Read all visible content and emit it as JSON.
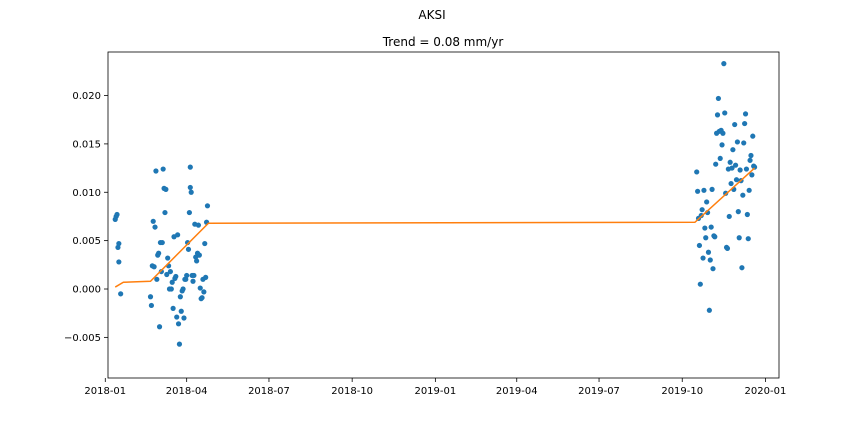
{
  "chart_data": {
    "type": "scatter",
    "suptitle": "AKSI",
    "title": "Trend = 0.08 mm/yr",
    "xlabel": "",
    "ylabel": "",
    "x_axis_type": "date",
    "xlim": [
      "2018-01-04",
      "2020-01-16"
    ],
    "ylim": [
      -0.0092,
      0.0245
    ],
    "grid": false,
    "legend": "none",
    "x_ticks": [
      "2018-01",
      "2018-04",
      "2018-07",
      "2018-10",
      "2019-01",
      "2019-04",
      "2019-07",
      "2019-10",
      "2020-01"
    ],
    "y_ticks": [
      -0.005,
      0.0,
      0.005,
      0.01,
      0.015,
      0.02
    ],
    "y_tick_labels": [
      "−0.005",
      "0.000",
      "0.005",
      "0.010",
      "0.015",
      "0.020"
    ],
    "colors": {
      "points": "#1f77b4",
      "trend": "#ff7f0e",
      "axes": "#000000"
    },
    "series": [
      {
        "kind": "scatter",
        "points": [
          [
            "2018-01-12",
            0.0072
          ],
          [
            "2018-01-13",
            0.0075
          ],
          [
            "2018-01-14",
            0.0077
          ],
          [
            "2018-01-15",
            0.0043
          ],
          [
            "2018-01-16",
            0.0047
          ],
          [
            "2018-01-16",
            0.0028
          ],
          [
            "2018-01-18",
            -0.0005
          ],
          [
            "2018-02-20",
            -0.0008
          ],
          [
            "2018-02-21",
            -0.0017
          ],
          [
            "2018-02-22",
            0.0024
          ],
          [
            "2018-02-23",
            0.007
          ],
          [
            "2018-02-24",
            0.0023
          ],
          [
            "2018-02-25",
            0.0064
          ],
          [
            "2018-02-26",
            0.0122
          ],
          [
            "2018-02-27",
            0.001
          ],
          [
            "2018-02-28",
            0.0035
          ],
          [
            "2018-03-01",
            0.0037
          ],
          [
            "2018-03-02",
            -0.0039
          ],
          [
            "2018-03-03",
            0.0048
          ],
          [
            "2018-03-04",
            0.0018
          ],
          [
            "2018-03-05",
            0.0048
          ],
          [
            "2018-03-06",
            0.0124
          ],
          [
            "2018-03-07",
            0.0104
          ],
          [
            "2018-03-08",
            0.0079
          ],
          [
            "2018-03-09",
            0.0103
          ],
          [
            "2018-03-10",
            0.0015
          ],
          [
            "2018-03-11",
            0.0032
          ],
          [
            "2018-03-12",
            0.0024
          ],
          [
            "2018-03-13",
            -0.0
          ],
          [
            "2018-03-14",
            0.0018
          ],
          [
            "2018-03-15",
            -0.0
          ],
          [
            "2018-03-16",
            0.0007
          ],
          [
            "2018-03-17",
            -0.002
          ],
          [
            "2018-03-18",
            0.0054
          ],
          [
            "2018-03-19",
            0.0011
          ],
          [
            "2018-03-20",
            0.0013
          ],
          [
            "2018-03-21",
            -0.0029
          ],
          [
            "2018-03-22",
            0.0056
          ],
          [
            "2018-03-23",
            -0.0036
          ],
          [
            "2018-03-24",
            -0.0057
          ],
          [
            "2018-03-25",
            -0.0008
          ],
          [
            "2018-03-26",
            -0.0023
          ],
          [
            "2018-03-27",
            -0.0002
          ],
          [
            "2018-03-28",
            -0.0
          ],
          [
            "2018-03-29",
            -0.003
          ],
          [
            "2018-03-30",
            0.001
          ],
          [
            "2018-03-31",
            0.001
          ],
          [
            "2018-04-01",
            0.0014
          ],
          [
            "2018-04-02",
            0.0048
          ],
          [
            "2018-04-03",
            0.0041
          ],
          [
            "2018-04-04",
            0.0079
          ],
          [
            "2018-04-05",
            0.0126
          ],
          [
            "2018-04-05",
            0.0105
          ],
          [
            "2018-04-06",
            0.01
          ],
          [
            "2018-04-07",
            0.0014
          ],
          [
            "2018-04-08",
            0.0008
          ],
          [
            "2018-04-09",
            0.0014
          ],
          [
            "2018-04-10",
            0.0067
          ],
          [
            "2018-04-11",
            0.0033
          ],
          [
            "2018-04-12",
            0.0029
          ],
          [
            "2018-04-13",
            0.0037
          ],
          [
            "2018-04-14",
            0.0066
          ],
          [
            "2018-04-15",
            0.0035
          ],
          [
            "2018-04-16",
            0.0001
          ],
          [
            "2018-04-17",
            -0.001
          ],
          [
            "2018-04-18",
            -0.0009
          ],
          [
            "2018-04-19",
            0.001
          ],
          [
            "2018-04-20",
            -0.0003
          ],
          [
            "2018-04-21",
            0.0047
          ],
          [
            "2018-04-22",
            0.0012
          ],
          [
            "2018-04-23",
            0.0069
          ],
          [
            "2018-04-24",
            0.0086
          ],
          [
            "2019-10-17",
            0.0121
          ],
          [
            "2019-10-18",
            0.0101
          ],
          [
            "2019-10-19",
            0.0073
          ],
          [
            "2019-10-20",
            0.0045
          ],
          [
            "2019-10-21",
            0.0005
          ],
          [
            "2019-10-22",
            0.0076
          ],
          [
            "2019-10-23",
            0.0082
          ],
          [
            "2019-10-24",
            0.0032
          ],
          [
            "2019-10-25",
            0.0102
          ],
          [
            "2019-10-26",
            0.0063
          ],
          [
            "2019-10-27",
            0.0053
          ],
          [
            "2019-10-28",
            0.009
          ],
          [
            "2019-10-29",
            0.0079
          ],
          [
            "2019-10-30",
            0.0038
          ],
          [
            "2019-10-31",
            -0.0022
          ],
          [
            "2019-11-01",
            0.003
          ],
          [
            "2019-11-02",
            0.0064
          ],
          [
            "2019-11-03",
            0.0103
          ],
          [
            "2019-11-04",
            0.0021
          ],
          [
            "2019-11-05",
            0.0055
          ],
          [
            "2019-11-06",
            0.0054
          ],
          [
            "2019-11-07",
            0.0129
          ],
          [
            "2019-11-08",
            0.0161
          ],
          [
            "2019-11-09",
            0.018
          ],
          [
            "2019-11-10",
            0.0197
          ],
          [
            "2019-11-11",
            0.0163
          ],
          [
            "2019-11-12",
            0.0135
          ],
          [
            "2019-11-13",
            0.0164
          ],
          [
            "2019-11-14",
            0.0149
          ],
          [
            "2019-11-15",
            0.0161
          ],
          [
            "2019-11-16",
            0.0233
          ],
          [
            "2019-11-17",
            0.0182
          ],
          [
            "2019-11-18",
            0.0099
          ],
          [
            "2019-11-19",
            0.0043
          ],
          [
            "2019-11-20",
            0.0042
          ],
          [
            "2019-11-21",
            0.0124
          ],
          [
            "2019-11-22",
            0.0075
          ],
          [
            "2019-11-23",
            0.0131
          ],
          [
            "2019-11-24",
            0.0109
          ],
          [
            "2019-11-25",
            0.0125
          ],
          [
            "2019-11-26",
            0.0144
          ],
          [
            "2019-11-27",
            0.0103
          ],
          [
            "2019-11-28",
            0.017
          ],
          [
            "2019-11-29",
            0.0128
          ],
          [
            "2019-11-30",
            0.0113
          ],
          [
            "2019-12-01",
            0.0152
          ],
          [
            "2019-12-02",
            0.008
          ],
          [
            "2019-12-03",
            0.0053
          ],
          [
            "2019-12-04",
            0.0123
          ],
          [
            "2019-12-05",
            0.0112
          ],
          [
            "2019-12-06",
            0.0022
          ],
          [
            "2019-12-07",
            0.0097
          ],
          [
            "2019-12-08",
            0.0151
          ],
          [
            "2019-12-09",
            0.0171
          ],
          [
            "2019-12-10",
            0.0181
          ],
          [
            "2019-12-11",
            0.0124
          ],
          [
            "2019-12-12",
            0.0077
          ],
          [
            "2019-12-13",
            0.0052
          ],
          [
            "2019-12-14",
            0.0102
          ],
          [
            "2019-12-15",
            0.0133
          ],
          [
            "2019-12-16",
            0.0138
          ],
          [
            "2019-12-17",
            0.0118
          ],
          [
            "2019-12-18",
            0.0158
          ],
          [
            "2019-12-19",
            0.0127
          ],
          [
            "2019-12-20",
            0.0126
          ]
        ]
      },
      {
        "kind": "line",
        "points": [
          [
            "2018-01-12",
            0.0002
          ],
          [
            "2018-01-21",
            0.0007
          ],
          [
            "2018-02-20",
            0.0008
          ],
          [
            "2018-04-25",
            0.0068
          ],
          [
            "2019-10-15",
            0.0069
          ],
          [
            "2019-12-20",
            0.0125
          ]
        ]
      }
    ]
  }
}
